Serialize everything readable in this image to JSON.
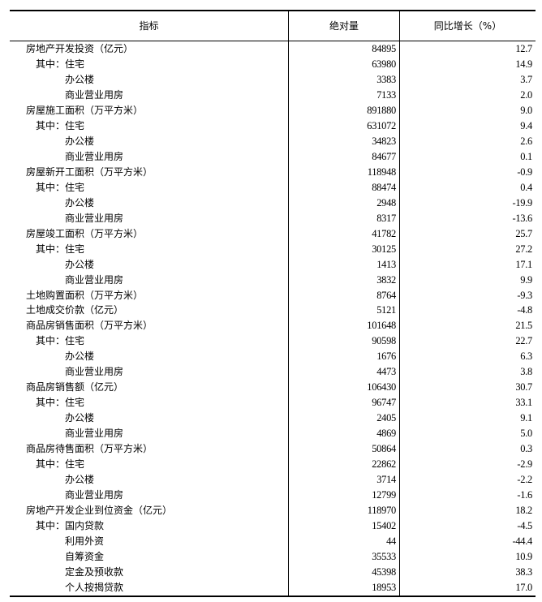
{
  "table": {
    "headers": [
      "指标",
      "绝对量",
      "同比增长（%）"
    ],
    "rows": [
      {
        "label": "房地产开发投资（亿元）",
        "level": 0,
        "value": "84895",
        "growth": "12.7"
      },
      {
        "label": "其中：住宅",
        "level": 1,
        "value": "63980",
        "growth": "14.9"
      },
      {
        "label": "办公楼",
        "level": 2,
        "value": "3383",
        "growth": "3.7"
      },
      {
        "label": "商业营业用房",
        "level": 2,
        "value": "7133",
        "growth": "2.0"
      },
      {
        "label": "房屋施工面积（万平方米）",
        "level": 0,
        "value": "891880",
        "growth": "9.0"
      },
      {
        "label": "其中：住宅",
        "level": 1,
        "value": "631072",
        "growth": "9.4"
      },
      {
        "label": "办公楼",
        "level": 2,
        "value": "34823",
        "growth": "2.6"
      },
      {
        "label": "商业营业用房",
        "level": 2,
        "value": "84677",
        "growth": "0.1"
      },
      {
        "label": "房屋新开工面积（万平方米）",
        "level": 0,
        "value": "118948",
        "growth": "-0.9"
      },
      {
        "label": "其中：住宅",
        "level": 1,
        "value": "88474",
        "growth": "0.4"
      },
      {
        "label": "办公楼",
        "level": 2,
        "value": "2948",
        "growth": "-19.9"
      },
      {
        "label": "商业营业用房",
        "level": 2,
        "value": "8317",
        "growth": "-13.6"
      },
      {
        "label": "房屋竣工面积（万平方米）",
        "level": 0,
        "value": "41782",
        "growth": "25.7"
      },
      {
        "label": "其中：住宅",
        "level": 1,
        "value": "30125",
        "growth": "27.2"
      },
      {
        "label": "办公楼",
        "level": 2,
        "value": "1413",
        "growth": "17.1"
      },
      {
        "label": "商业营业用房",
        "level": 2,
        "value": "3832",
        "growth": "9.9"
      },
      {
        "label": "土地购置面积（万平方米）",
        "level": 0,
        "value": "8764",
        "growth": "-9.3"
      },
      {
        "label": "土地成交价款（亿元）",
        "level": 0,
        "value": "5121",
        "growth": "-4.8"
      },
      {
        "label": "商品房销售面积（万平方米）",
        "level": 0,
        "value": "101648",
        "growth": "21.5"
      },
      {
        "label": "其中：住宅",
        "level": 1,
        "value": "90598",
        "growth": "22.7"
      },
      {
        "label": "办公楼",
        "level": 2,
        "value": "1676",
        "growth": "6.3"
      },
      {
        "label": "商业营业用房",
        "level": 2,
        "value": "4473",
        "growth": "3.8"
      },
      {
        "label": "商品房销售额（亿元）",
        "level": 0,
        "value": "106430",
        "growth": "30.7"
      },
      {
        "label": "其中：住宅",
        "level": 1,
        "value": "96747",
        "growth": "33.1"
      },
      {
        "label": "办公楼",
        "level": 2,
        "value": "2405",
        "growth": "9.1"
      },
      {
        "label": "商业营业用房",
        "level": 2,
        "value": "4869",
        "growth": "5.0"
      },
      {
        "label": "商品房待售面积（万平方米）",
        "level": 0,
        "value": "50864",
        "growth": "0.3"
      },
      {
        "label": "其中：住宅",
        "level": 1,
        "value": "22862",
        "growth": "-2.9"
      },
      {
        "label": "办公楼",
        "level": 2,
        "value": "3714",
        "growth": "-2.2"
      },
      {
        "label": "商业营业用房",
        "level": 2,
        "value": "12799",
        "growth": "-1.6"
      },
      {
        "label": "房地产开发企业到位资金（亿元）",
        "level": 0,
        "value": "118970",
        "growth": "18.2"
      },
      {
        "label": "其中：国内贷款",
        "level": 1,
        "value": "15402",
        "growth": "-4.5"
      },
      {
        "label": "利用外资",
        "level": 2,
        "value": "44",
        "growth": "-44.4"
      },
      {
        "label": "自筹资金",
        "level": 2,
        "value": "35533",
        "growth": "10.9"
      },
      {
        "label": "定金及预收款",
        "level": 2,
        "value": "45398",
        "growth": "38.3"
      },
      {
        "label": "个人按揭贷款",
        "level": 2,
        "value": "18953",
        "growth": "17.0"
      }
    ]
  }
}
